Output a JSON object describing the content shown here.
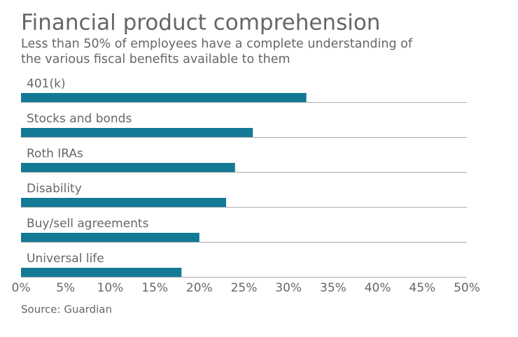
{
  "chart_data": {
    "type": "bar",
    "orientation": "horizontal",
    "title": "Financial product comprehension",
    "subtitle": [
      "Less than 50% of employees have a complete understanding of",
      "the various fiscal benefits available to them"
    ],
    "categories": [
      "401(k)",
      "Stocks and bonds",
      "Roth IRAs",
      "Disability",
      "Buy/sell agreements",
      "Universal life"
    ],
    "values": [
      32,
      26,
      24,
      23,
      20,
      18
    ],
    "color": "#137a96",
    "xlim": [
      0,
      50
    ],
    "xticks": [
      {
        "value": 0,
        "label": "0%"
      },
      {
        "value": 5,
        "label": "5%"
      },
      {
        "value": 10,
        "label": "10%"
      },
      {
        "value": 15,
        "label": "15%"
      },
      {
        "value": 20,
        "label": "20%"
      },
      {
        "value": 25,
        "label": "25%"
      },
      {
        "value": 30,
        "label": "30%"
      },
      {
        "value": 35,
        "label": "35%"
      },
      {
        "value": 40,
        "label": "40%"
      },
      {
        "value": 45,
        "label": "45%"
      },
      {
        "value": 50,
        "label": "50%"
      }
    ],
    "source": "Source: Guardian"
  }
}
